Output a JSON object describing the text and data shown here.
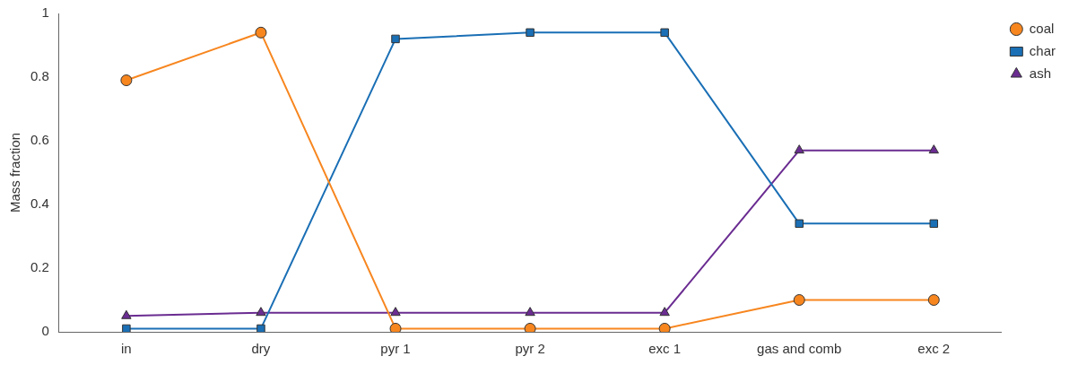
{
  "chart_data": {
    "type": "line",
    "ylabel": "Mass fraction",
    "categories": [
      "in",
      "dry",
      "pyr 1",
      "pyr 2",
      "exc 1",
      "gas and comb",
      "exc 2"
    ],
    "series": [
      {
        "name": "coal",
        "color": "#f7861f",
        "marker": "circle",
        "values": [
          0.79,
          0.94,
          0.01,
          0.01,
          0.01,
          0.1,
          0.1
        ]
      },
      {
        "name": "char",
        "color": "#1a6fb5",
        "marker": "square",
        "values": [
          0.01,
          0.01,
          0.92,
          0.94,
          0.94,
          0.34,
          0.34
        ]
      },
      {
        "name": "ash",
        "color": "#6a2c91",
        "marker": "triangle",
        "values": [
          0.05,
          0.06,
          0.06,
          0.06,
          0.06,
          0.57,
          0.57
        ]
      }
    ],
    "ylim": [
      0,
      1
    ],
    "yticks": [
      0,
      0.2,
      0.4,
      0.6,
      0.8,
      1
    ],
    "grid": false,
    "legend": "top right"
  }
}
